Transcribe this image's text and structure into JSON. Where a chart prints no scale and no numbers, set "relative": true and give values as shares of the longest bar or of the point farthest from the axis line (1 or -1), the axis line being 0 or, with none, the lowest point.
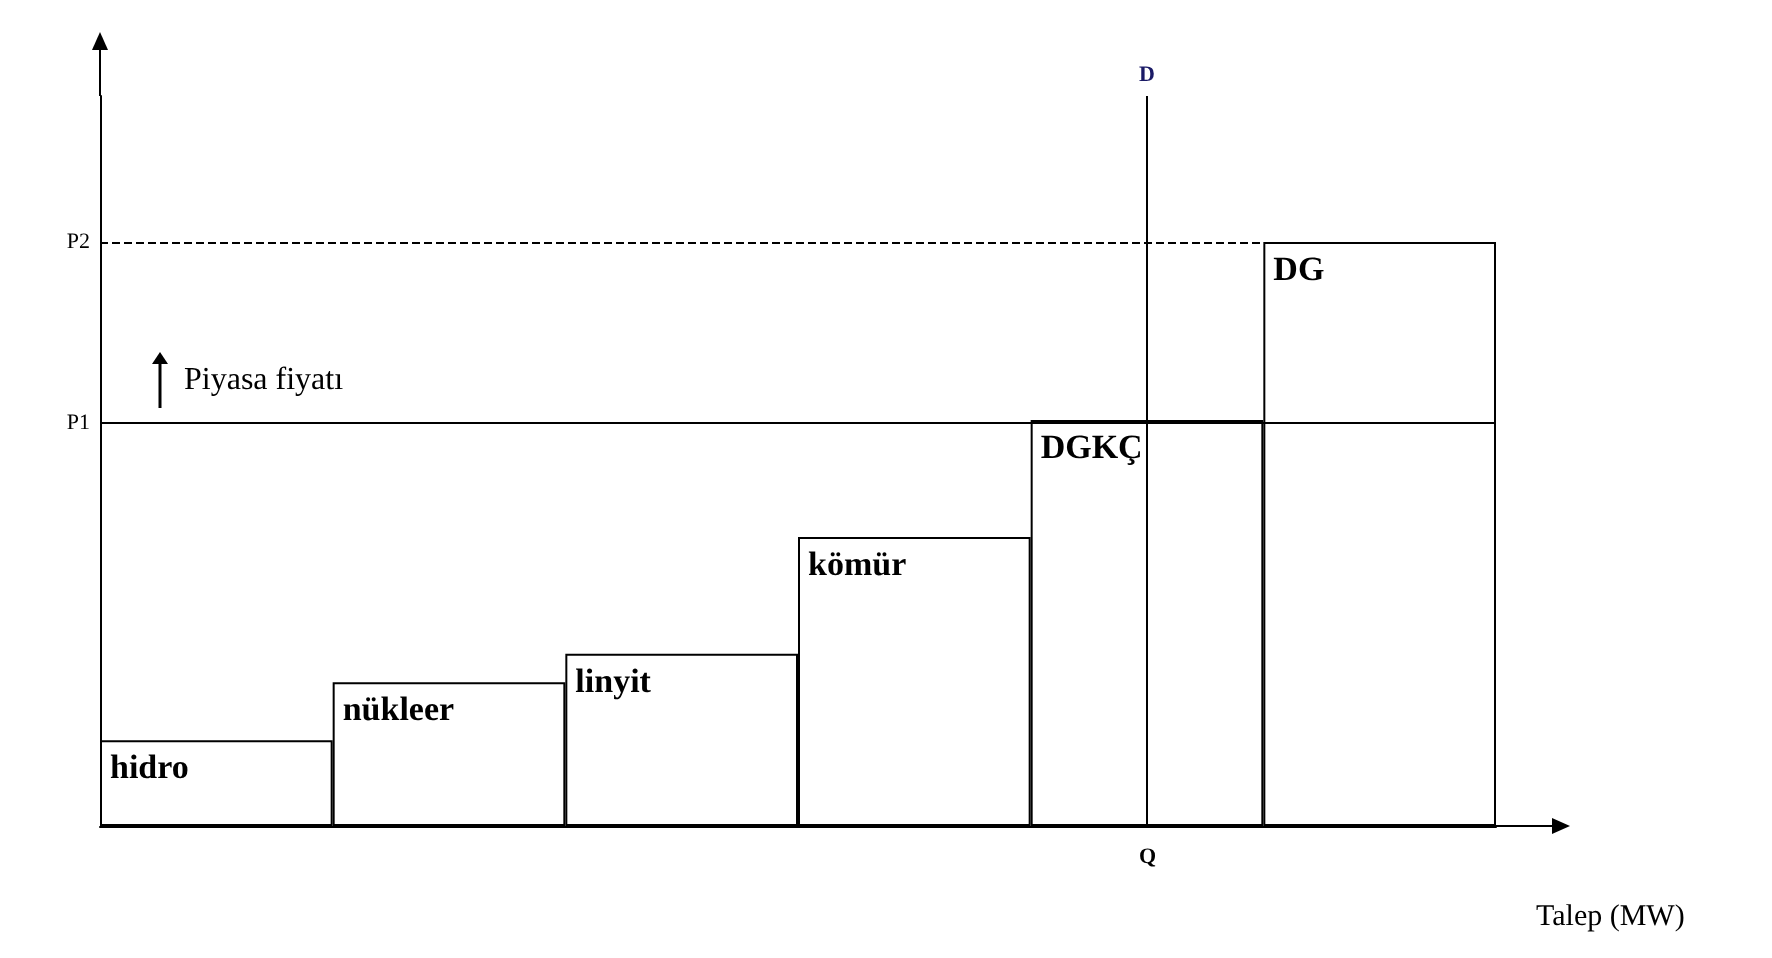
{
  "chart_data": {
    "type": "bar",
    "relative": true,
    "xlabel": "Talep (MW)",
    "categories": [
      "hidro",
      "nükleer",
      "linyit",
      "kömür",
      "DGKÇ",
      "DG"
    ],
    "values": [
      0.147,
      0.246,
      0.295,
      0.495,
      0.695,
      1
    ],
    "color": "#ffffff",
    "ref_lines": [
      {
        "axis": "y",
        "value": 0.695,
        "label": "P1",
        "line_style": "solid"
      },
      {
        "axis": "y",
        "value": 1,
        "label": "P2",
        "line_style": "dashed"
      },
      {
        "axis": "x",
        "value": "DGKÇ",
        "label": "D",
        "line_style": "solid"
      }
    ],
    "annotations": [
      "Piyasa fiyatı",
      "Q"
    ],
    "grid": false
  }
}
